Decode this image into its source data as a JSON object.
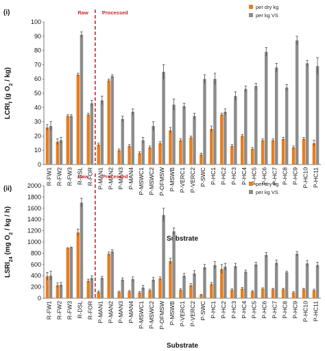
{
  "chart_data": [
    {
      "type": "bar",
      "panel_label": "(i)",
      "ylabel_html": "LCRI_f (g O_2 / kg)",
      "ylabel_parts": [
        "LCRI",
        "f",
        " (g O",
        "2",
        " / kg)"
      ],
      "xlabel": "Substrate",
      "ylim": [
        0,
        100
      ],
      "yticks": [
        0,
        10,
        20,
        30,
        40,
        50,
        60,
        70,
        80,
        90,
        100
      ],
      "regions": {
        "raw_label": "Raw",
        "processed_label": "Processed"
      },
      "categories": [
        "R-FW1",
        "R-FW2",
        "R-FW3",
        "R-DSL",
        "R-FOR",
        "P-MAN1",
        "P-MAN2",
        "P-MAN3",
        "P-MAN4",
        "P-MSWC1",
        "P-MSWC2",
        "P-OFMSW",
        "P-MSWB",
        "P-VERC1",
        "P-VERC2",
        "P-SWC",
        "P-HC1",
        "P-HC2",
        "P-HC3",
        "P-HC4",
        "P-HC5",
        "P-HC6",
        "P-HC7",
        "P-HC8",
        "P-HC9",
        "P-HC10",
        "P-HC11"
      ],
      "series": [
        {
          "name": "per dry kg",
          "color": "#e87d1e",
          "values": [
            26,
            16,
            34,
            63,
            35,
            14,
            59,
            10,
            13,
            8,
            12,
            15,
            24,
            17,
            19,
            7,
            25,
            35,
            13,
            20,
            11,
            17,
            17,
            18,
            12,
            18,
            15
          ],
          "errors": [
            2,
            2,
            1,
            1,
            1,
            1,
            1,
            1,
            1,
            1,
            1,
            1,
            2,
            1,
            1,
            1,
            2,
            1,
            1,
            1,
            1,
            1,
            1,
            1,
            1,
            1,
            2
          ]
        },
        {
          "name": "per kg VS",
          "color": "#8c8c8c",
          "values": [
            27,
            17,
            34,
            91,
            43,
            45,
            62,
            32,
            37,
            17,
            27,
            65,
            42,
            41,
            34,
            60,
            60,
            37,
            48,
            53,
            55,
            79,
            68,
            54,
            87,
            71,
            69
          ],
          "errors": [
            3,
            2,
            1,
            2,
            2,
            3,
            1,
            2,
            2,
            2,
            3,
            5,
            4,
            2,
            2,
            3,
            4,
            2,
            3,
            2,
            2,
            3,
            3,
            2,
            3,
            2,
            6
          ]
        }
      ]
    },
    {
      "type": "bar",
      "panel_label": "(ii)",
      "ylabel_parts": [
        "LSRI",
        "24",
        " (mg O",
        "2",
        " / kg / h)"
      ],
      "xlabel": "Substrate",
      "ylim": [
        0,
        2000
      ],
      "yticks": [
        0,
        200,
        400,
        600,
        800,
        1000,
        1200,
        1400,
        1600,
        1800,
        2000
      ],
      "regions": {
        "raw_label": "Raw",
        "processed_label": "Processed"
      },
      "categories": [
        "R-FW1",
        "R-FW2",
        "R-FW3",
        "R-DSL",
        "R-FOR",
        "P-MAN1",
        "P-MAN2",
        "P-MAN3",
        "P-MAN4",
        "P-MSWC1",
        "P-MSWC2",
        "P-OFMSW",
        "P-MSWB",
        "P-VERC1",
        "P-VERC2",
        "P-SWC",
        "P-HC1",
        "P-HC2",
        "P-HC3",
        "P-HC4",
        "P-HC5",
        "P-HC6",
        "P-HC7",
        "P-HC8",
        "P-HC9",
        "P-HC10",
        "P-HC11"
      ],
      "series": [
        {
          "name": "per dry kg",
          "color": "#e87d1e",
          "values": [
            390,
            230,
            890,
            1170,
            310,
            110,
            790,
            110,
            120,
            100,
            140,
            350,
            660,
            150,
            230,
            60,
            250,
            520,
            150,
            170,
            120,
            170,
            160,
            160,
            100,
            160,
            140
          ],
          "errors": [
            70,
            40,
            10,
            60,
            30,
            20,
            30,
            15,
            15,
            15,
            20,
            30,
            50,
            20,
            30,
            10,
            30,
            80,
            20,
            20,
            15,
            15,
            15,
            15,
            15,
            15,
            20
          ]
        },
        {
          "name": "per kg VS",
          "color": "#8c8c8c",
          "values": [
            400,
            240,
            900,
            1700,
            360,
            360,
            830,
            330,
            340,
            190,
            330,
            1480,
            1190,
            400,
            440,
            550,
            590,
            560,
            570,
            470,
            600,
            770,
            630,
            460,
            790,
            620,
            590
          ],
          "errors": [
            80,
            40,
            10,
            80,
            40,
            30,
            30,
            30,
            40,
            40,
            40,
            120,
            60,
            40,
            50,
            50,
            60,
            60,
            50,
            30,
            40,
            40,
            50,
            20,
            40,
            50,
            50
          ]
        }
      ]
    }
  ]
}
